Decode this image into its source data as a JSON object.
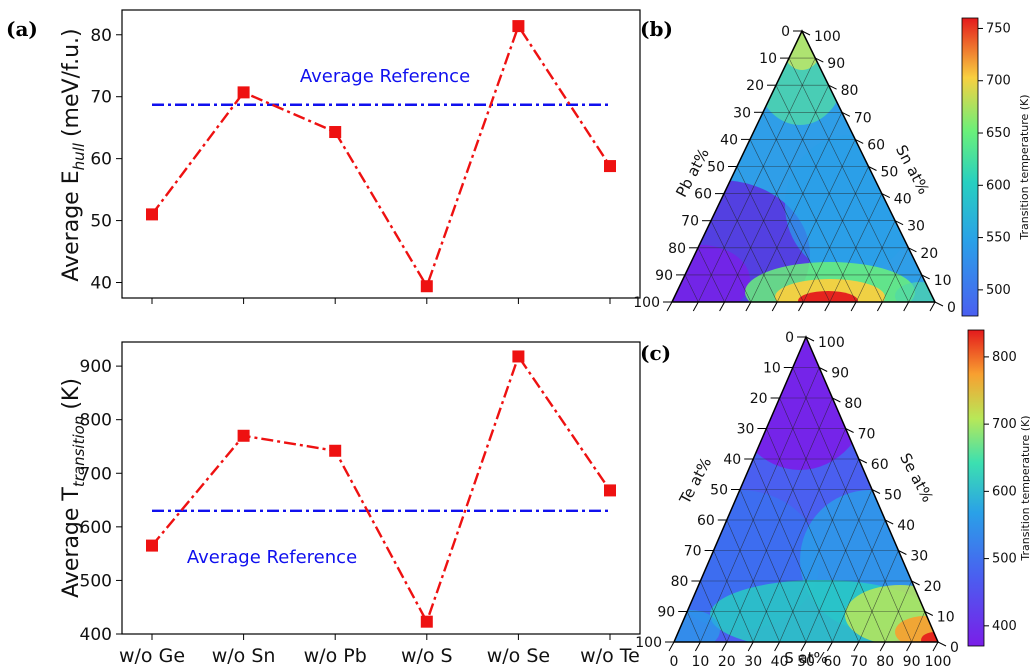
{
  "labels": {
    "panel_a": "(a)",
    "panel_b": "(b)",
    "panel_c": "(c)"
  },
  "colors": {
    "series": "#ee1111",
    "reference": "#1010ee",
    "colormap": [
      "#7a1ee8",
      "#4a5ff0",
      "#2aa0e8",
      "#28d0c0",
      "#6af07a",
      "#d8e048",
      "#f89a30",
      "#e41a1c"
    ]
  },
  "chart_data": [
    {
      "type": "line",
      "panel": "(a) top",
      "categories": [
        "w/o Ge",
        "w/o Sn",
        "w/o Pb",
        "w/o S",
        "w/o Se",
        "w/o Te"
      ],
      "series": [
        {
          "values": [
            51,
            70.7,
            64.3,
            39.4,
            81.4,
            58.8
          ]
        }
      ],
      "reference": {
        "label": "Average Reference",
        "value": 68.7
      },
      "ylabel": "Average E_hull (meV/f.u.)",
      "ylabel_main": "Average E",
      "ylabel_sub": "hull",
      "ylabel_unit": "(meV/f.u.)",
      "ylim": [
        37.5,
        84
      ],
      "yticks": [
        40,
        50,
        60,
        70,
        80
      ],
      "grid": false
    },
    {
      "type": "line",
      "panel": "(a) bottom",
      "categories": [
        "w/o Ge",
        "w/o Sn",
        "w/o Pb",
        "w/o S",
        "w/o Se",
        "w/o Te"
      ],
      "series": [
        {
          "values": [
            565,
            770,
            742,
            423,
            918,
            668
          ]
        }
      ],
      "reference": {
        "label": "Average Reference",
        "value": 630
      },
      "ylabel": "Average T_transition (K)",
      "ylabel_main": "Average T",
      "ylabel_sub": "transition",
      "ylabel_unit": "(K)",
      "ylim": [
        400,
        945
      ],
      "yticks": [
        400,
        500,
        600,
        700,
        800,
        900
      ],
      "grid": false
    },
    {
      "type": "heatmap",
      "panel": "(b)",
      "subtype": "ternary",
      "left_axis_label": "Pb at%",
      "right_axis_label": "Sn at%",
      "bottom_axis_label": "",
      "ticks": [
        0,
        10,
        20,
        30,
        40,
        50,
        60,
        70,
        80,
        90,
        100
      ],
      "colorbar": {
        "label": "Transition temperature (K)",
        "range": [
          475,
          760
        ],
        "ticks": [
          500,
          550,
          600,
          650,
          700,
          750
        ]
      },
      "regions": [
        {
          "where": "left vertex (Pb rich)",
          "value": 475
        },
        {
          "where": "top vertex (Sn rich)",
          "value": 650
        },
        {
          "where": "bottom edge, about 55 S at%",
          "value": 760
        },
        {
          "where": "centre",
          "value": 540
        }
      ]
    },
    {
      "type": "heatmap",
      "panel": "(c)",
      "subtype": "ternary",
      "left_axis_label": "Te at%",
      "right_axis_label": "Se at%",
      "bottom_axis_label": "S at%",
      "ticks": [
        0,
        10,
        20,
        30,
        40,
        50,
        60,
        70,
        80,
        90,
        100
      ],
      "colorbar": {
        "label": "Transition temperature (K)",
        "range": [
          370,
          840
        ],
        "ticks": [
          400,
          500,
          600,
          700,
          800
        ]
      },
      "regions": [
        {
          "where": "top vertex (Se rich)",
          "value": 380
        },
        {
          "where": "left vertex (Te rich)",
          "value": 480
        },
        {
          "where": "right vertex (S rich)",
          "value": 760
        },
        {
          "where": "centre",
          "value": 500
        }
      ]
    }
  ]
}
